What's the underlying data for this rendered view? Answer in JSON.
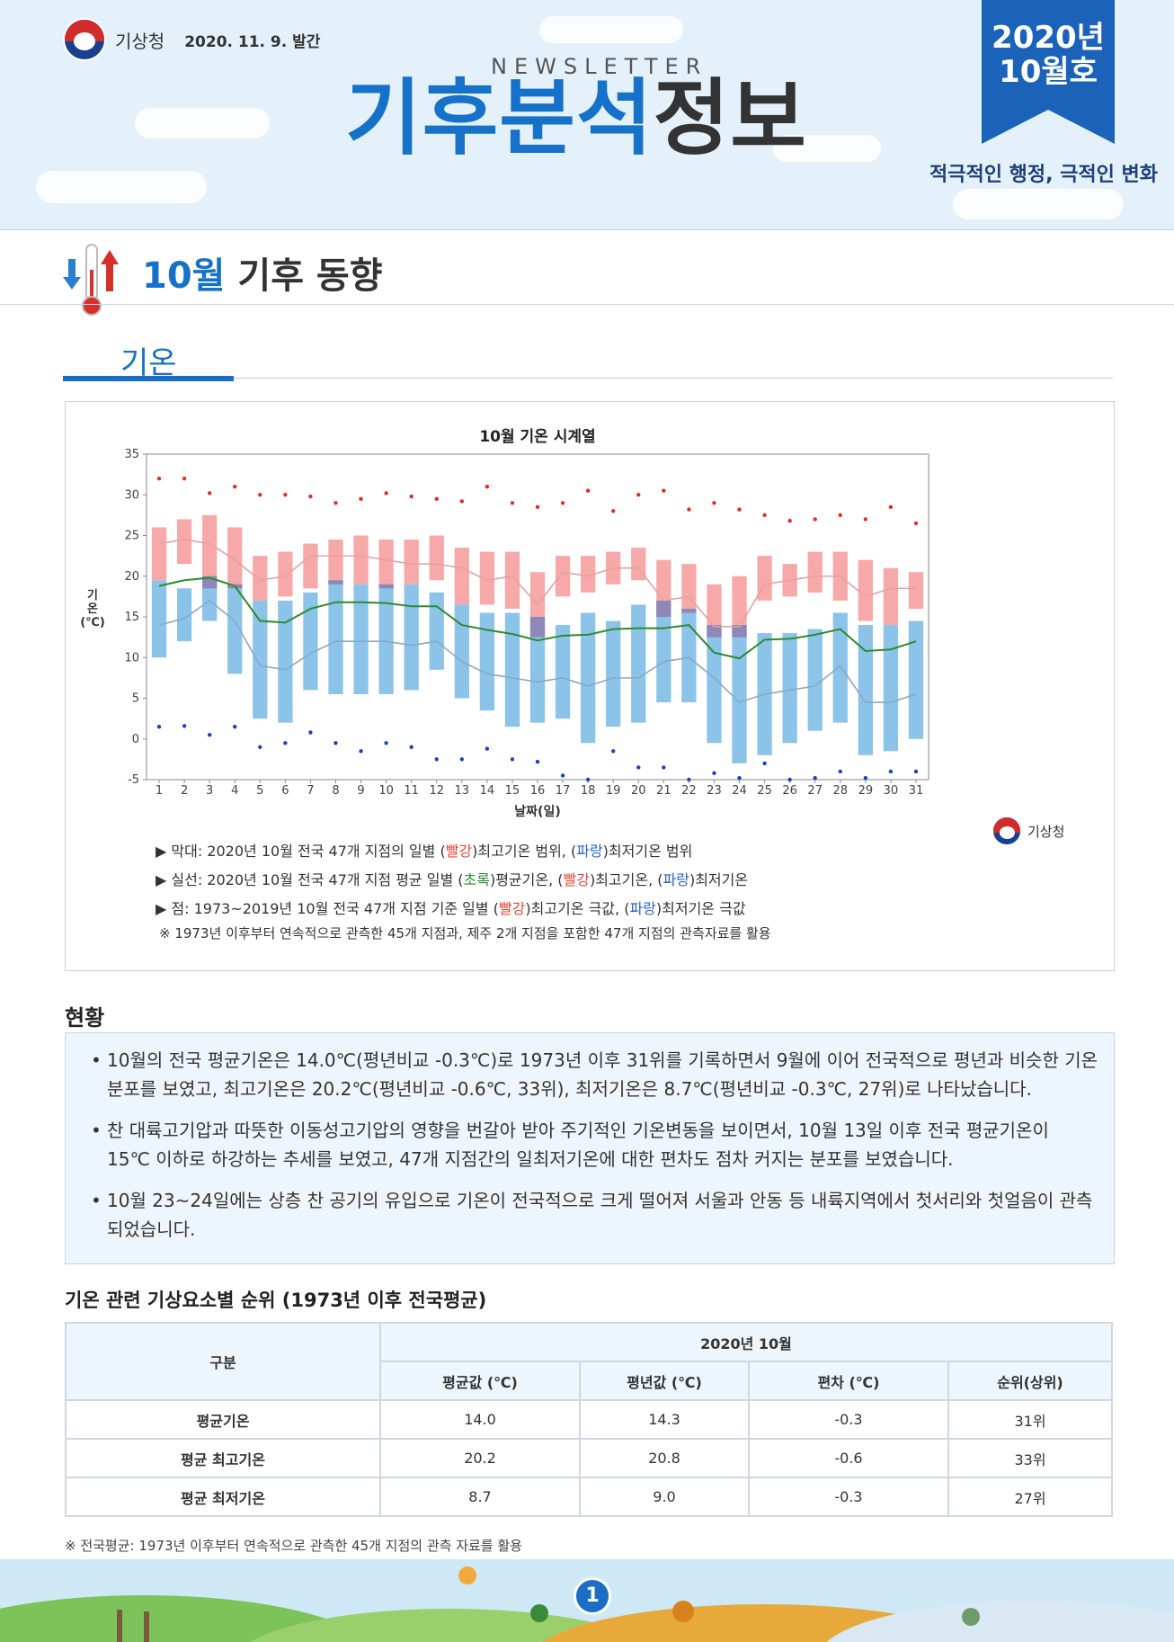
{
  "header": {
    "agency": "기상청",
    "date": "2020. 11. 9. 발간",
    "newsletter": "NEWSLETTER",
    "title_part1": "기후분석",
    "title_part2": "정보",
    "issue_year": "2020년",
    "issue_month": "10월호",
    "slogan": "적극적인 행정, 극적인 변화"
  },
  "section": {
    "title_month": "10월",
    "title_rest": " 기후 동향",
    "tab": "기온"
  },
  "colors": {
    "red_bar": "#f7a9a9",
    "blue_bar": "#8cc3e8",
    "overlap": "#8d88b8",
    "mean_line": "#2e8b2e",
    "max_line": "#e8a0a0",
    "min_line": "#8aa8c8",
    "brand": "#1671c8"
  },
  "chart_data": {
    "type": "bar",
    "title": "10월 기온 시계열",
    "xlabel": "날짜(일)",
    "ylabel": "기온(℃)",
    "ylim": [
      -5,
      35
    ],
    "yticks": [
      -5,
      0,
      5,
      10,
      15,
      20,
      25,
      30,
      35
    ],
    "grid": false,
    "days": [
      1,
      2,
      3,
      4,
      5,
      6,
      7,
      8,
      9,
      10,
      11,
      12,
      13,
      14,
      15,
      16,
      17,
      18,
      19,
      20,
      21,
      22,
      23,
      24,
      25,
      26,
      27,
      28,
      29,
      30,
      31
    ],
    "max_range": [
      [
        19.5,
        26
      ],
      [
        21.5,
        27
      ],
      [
        18.5,
        27.5
      ],
      [
        18.5,
        26
      ],
      [
        17,
        22.5
      ],
      [
        17.5,
        23
      ],
      [
        18.5,
        24
      ],
      [
        19,
        24.5
      ],
      [
        19,
        25
      ],
      [
        18.5,
        24.5
      ],
      [
        19,
        24.5
      ],
      [
        19.5,
        25
      ],
      [
        16.5,
        23.5
      ],
      [
        16.5,
        23
      ],
      [
        16,
        23
      ],
      [
        12.5,
        20.5
      ],
      [
        17.5,
        22.5
      ],
      [
        18,
        22.5
      ],
      [
        19,
        23
      ],
      [
        19.5,
        23.5
      ],
      [
        15,
        22
      ],
      [
        15.5,
        21.5
      ],
      [
        12.5,
        19
      ],
      [
        12.5,
        20
      ],
      [
        17,
        22.5
      ],
      [
        17.5,
        21.5
      ],
      [
        18,
        23
      ],
      [
        17,
        23
      ],
      [
        14.5,
        22
      ],
      [
        14,
        21
      ],
      [
        16,
        20.5
      ]
    ],
    "min_range": [
      [
        10,
        19.5
      ],
      [
        12,
        18.5
      ],
      [
        14.5,
        20
      ],
      [
        8,
        19
      ],
      [
        2.5,
        17
      ],
      [
        2,
        17
      ],
      [
        6,
        18
      ],
      [
        5.5,
        19.5
      ],
      [
        5.5,
        19
      ],
      [
        5.5,
        19
      ],
      [
        6,
        19
      ],
      [
        8.5,
        18
      ],
      [
        5,
        16.5
      ],
      [
        3.5,
        15.5
      ],
      [
        1.5,
        15.5
      ],
      [
        2,
        15
      ],
      [
        2.5,
        14
      ],
      [
        -0.5,
        15.5
      ],
      [
        1.5,
        14.5
      ],
      [
        2,
        16.5
      ],
      [
        4.5,
        17
      ],
      [
        4.5,
        16
      ],
      [
        -0.5,
        14
      ],
      [
        -3,
        14
      ],
      [
        -2,
        13
      ],
      [
        -0.5,
        13
      ],
      [
        1,
        13.5
      ],
      [
        2,
        15.5
      ],
      [
        -2,
        14
      ],
      [
        -1.5,
        14
      ],
      [
        0,
        14.5
      ]
    ],
    "mean_line": [
      18.8,
      19.5,
      19.8,
      18.8,
      14.5,
      14.3,
      16,
      16.8,
      16.8,
      16.7,
      16.3,
      16.3,
      14,
      13.4,
      12.9,
      12.1,
      12.7,
      12.8,
      13.5,
      13.6,
      13.6,
      14,
      10.6,
      9.9,
      12.2,
      12.3,
      12.8,
      13.5,
      10.8,
      11,
      12
    ],
    "max_line": [
      24,
      24.5,
      24,
      22,
      19.5,
      20,
      22.5,
      22.5,
      22.5,
      22,
      21.5,
      21.5,
      21,
      19.5,
      20,
      16.5,
      20.5,
      20,
      21,
      21,
      17,
      17.5,
      13.8,
      13.8,
      19,
      19.5,
      20,
      20,
      17.5,
      18.5,
      18.5
    ],
    "min_line": [
      14,
      14.8,
      17,
      14.5,
      9,
      8.5,
      10.5,
      12,
      12,
      12,
      11.5,
      12,
      9.5,
      8,
      7.5,
      7,
      7.5,
      6.5,
      7.5,
      7.5,
      9.5,
      10,
      7.5,
      4.5,
      5.5,
      6,
      6.5,
      9,
      4.5,
      4.5,
      5.5
    ],
    "record_max": [
      32,
      32,
      30.2,
      31,
      30,
      30,
      29.8,
      29,
      29.5,
      30.2,
      29.8,
      29.5,
      29.2,
      31,
      29,
      28.5,
      29,
      30.5,
      28,
      30,
      30.5,
      28.2,
      29,
      28.2,
      27.5,
      26.8,
      27,
      27.5,
      27,
      28.5,
      26.5
    ],
    "record_min": [
      1.5,
      1.6,
      0.5,
      1.5,
      -1,
      -0.5,
      0.8,
      -0.5,
      -1.5,
      -0.5,
      -1,
      -2.5,
      -2.5,
      -1.2,
      -2.5,
      -2.8,
      -4.5,
      -5,
      -1.5,
      -3.5,
      -3.5,
      -5,
      -4.2,
      -4.8,
      -3,
      -5,
      -4.8,
      -4,
      -4.8,
      -4,
      -4
    ]
  },
  "notes": {
    "n1_a": "▶ 막대: 2020년 10월 전국 47개 지점의 일별 (",
    "n1_b": "빨강",
    "n1_c": ")최고기온 범위, (",
    "n1_d": "파랑",
    "n1_e": ")최저기온 범위",
    "n2_a": "▶ 실선: 2020년 10월 전국 47개 지점 평균 일별 (",
    "n2_b": "초록",
    "n2_c": ")평균기온, (",
    "n2_d": "빨강",
    "n2_e": ")최고기온, (",
    "n2_f": "파랑",
    "n2_g": ")최저기온",
    "n3_a": "▶ 점: 1973~2019년 10월 전국 47개 지점 기준 일별 (",
    "n3_b": "빨강",
    "n3_c": ")최고기온 극값, (",
    "n3_d": "파랑",
    "n3_e": ")최저기온 극값",
    "n4": "※ 1973년 이후부터 연속적으로 관측한 45개 지점과, 제주 2개 지점을 포함한 47개 지점의 관측자료를 활용"
  },
  "status": {
    "heading": "현황",
    "b1": "10월의 전국 평균기온은 14.0℃(평년비교 -0.3℃)로 1973년 이후 31위를 기록하면서 9월에 이어 전국적으로 평년과 비슷한 기온 분포를 보였고, 최고기온은 20.2℃(평년비교 -0.6℃, 33위), 최저기온은 8.7℃(평년비교 -0.3℃, 27위)로 나타났습니다.",
    "b2": "찬 대륙고기압과 따뜻한 이동성고기압의 영향을 번갈아 받아 주기적인 기온변동을 보이면서, 10월 13일 이후 전국 평균기온이 15℃ 이하로 하강하는 추세를 보였고, 47개 지점간의 일최저기온에 대한 편차도 점차 커지는 분포를 보였습니다.",
    "b3": "10월 23~24일에는 상층 찬 공기의 유입으로 기온이 전국적으로 크게 떨어져 서울과 안동 등 내륙지역에서 첫서리와 첫얼음이 관측되었습니다."
  },
  "table": {
    "heading": "기온 관련 기상요소별 순위 (1973년 이후 전국평균)",
    "col_group": "구분",
    "period": "2020년 10월",
    "headers": [
      "평균값 (℃)",
      "평년값 (℃)",
      "편차 (℃)",
      "순위(상위)"
    ],
    "rows": [
      {
        "label": "평균기온",
        "values": [
          "14.0",
          "14.3",
          "-0.3",
          "31위"
        ]
      },
      {
        "label": "평균 최고기온",
        "values": [
          "20.2",
          "20.8",
          "-0.6",
          "33위"
        ]
      },
      {
        "label": "평균 최저기온",
        "values": [
          "8.7",
          "9.0",
          "-0.3",
          "27위"
        ]
      }
    ],
    "footnote": "※ 전국평균: 1973년 이후부터 연속적으로 관측한 45개 지점의 관측 자료를 활용"
  },
  "footer": {
    "page": "1"
  }
}
